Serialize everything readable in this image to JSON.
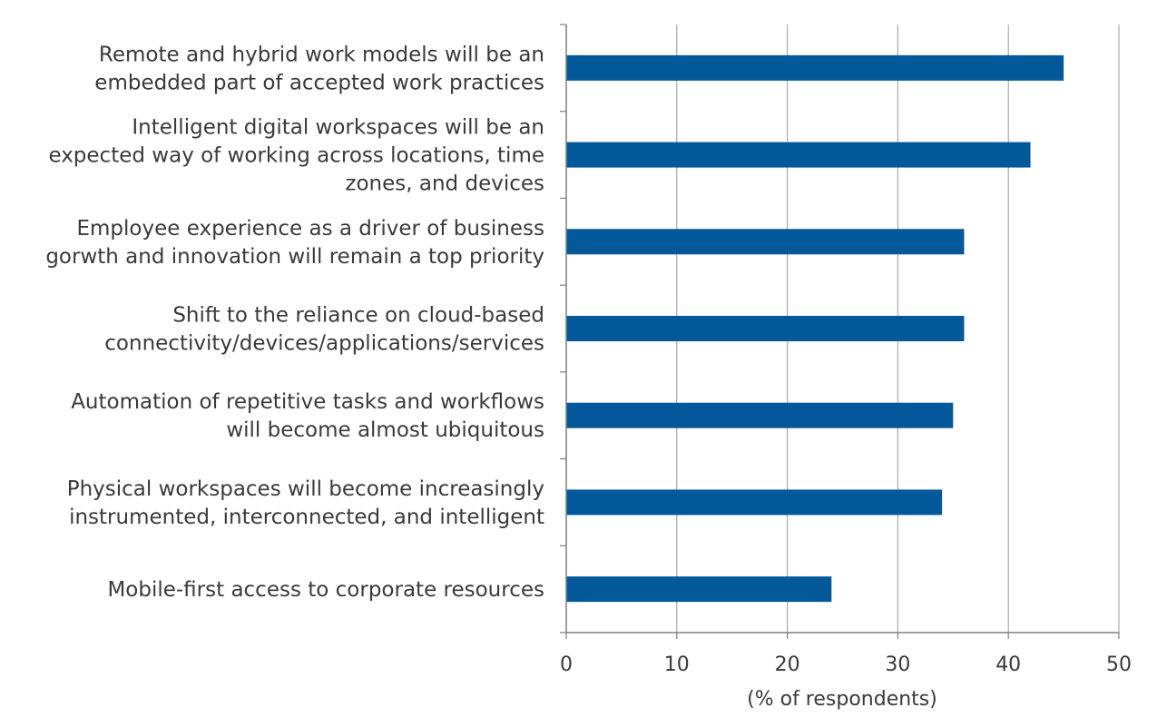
{
  "chart_data": {
    "type": "bar",
    "orientation": "horizontal",
    "categories": [
      [
        "Remote and hybrid work models will be an",
        "embedded part of accepted work practices"
      ],
      [
        "Intelligent digital workspaces will be an",
        "expected way of working across locations, time",
        "zones, and devices"
      ],
      [
        "Employee experience as a driver of business",
        "gorwth and innovation will remain a top priority"
      ],
      [
        "Shift to the reliance on cloud-based",
        "connectivity/devices/applications/services"
      ],
      [
        "Automation of repetitive tasks and workflows",
        "will become almost ubiquitous"
      ],
      [
        "Physical workspaces will become increasingly",
        "instrumented, interconnected, and intelligent"
      ],
      [
        "Mobile-first access to corporate resources"
      ]
    ],
    "values": [
      45,
      42,
      36,
      36,
      35,
      34,
      24
    ],
    "xlabel": "(% of respondents)",
    "xlim": [
      0,
      50
    ],
    "xticks": [
      "0",
      "10",
      "20",
      "30",
      "40",
      "50"
    ],
    "grid": "vertical",
    "bar_color": "#03589a",
    "grid_color": "#9a9a9a",
    "axis_color": "#7f7f7f"
  }
}
